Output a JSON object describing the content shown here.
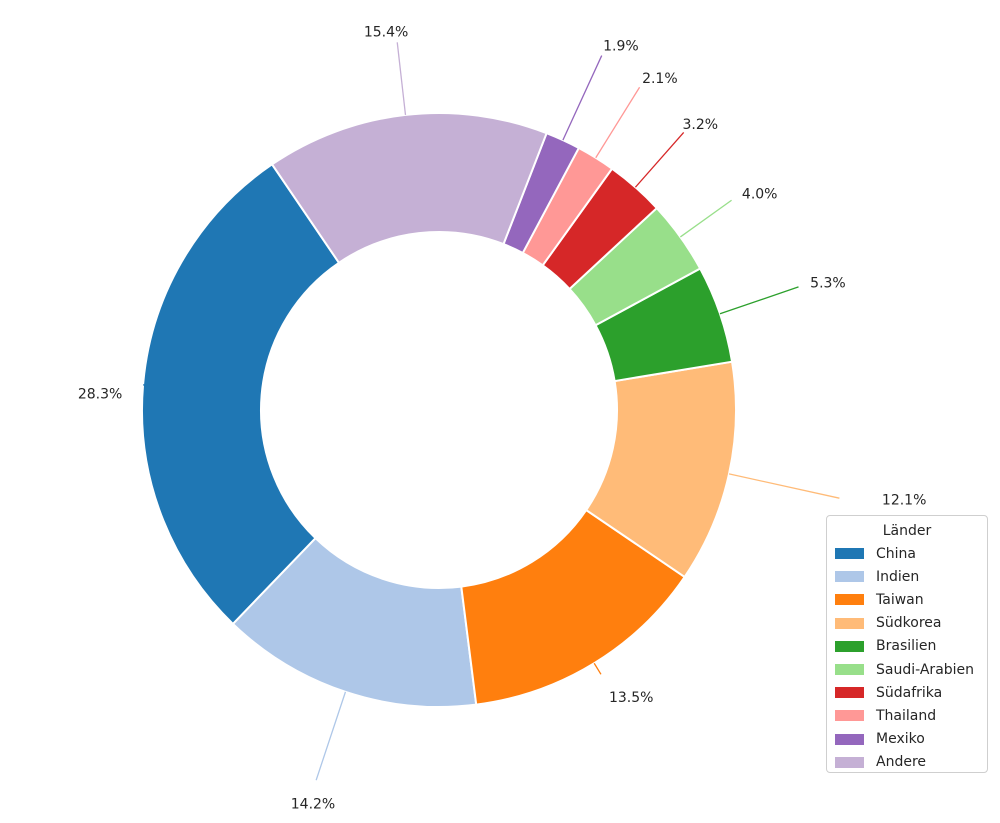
{
  "chart_data": {
    "type": "pie",
    "variant": "donut",
    "categories": [
      "China",
      "Indien",
      "Taiwan",
      "Südkorea",
      "Brasilien",
      "Saudi-Arabien",
      "Südafrika",
      "Thailand",
      "Mexiko",
      "Andere"
    ],
    "values": [
      28.3,
      14.2,
      13.5,
      12.1,
      5.3,
      4.0,
      3.2,
      2.1,
      1.9,
      15.4
    ],
    "value_labels": [
      "28.3%",
      "14.2%",
      "13.5%",
      "12.1%",
      "5.3%",
      "4.0%",
      "3.2%",
      "2.1%",
      "1.9%",
      "15.4%"
    ],
    "colors": [
      "#1f77b4",
      "#aec7e8",
      "#ff7f0e",
      "#ffbb78",
      "#2ca02c",
      "#98df8a",
      "#d62728",
      "#ff9896",
      "#9467bd",
      "#c5b0d5"
    ],
    "legend_title": "Länder",
    "legend_position": "lower-right",
    "direction": "clockwise from left"
  }
}
